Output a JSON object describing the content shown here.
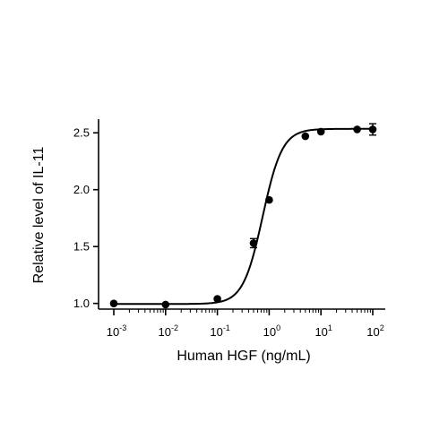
{
  "chart_data": {
    "type": "scatter",
    "xlabel": "Human HGF (ng/mL)",
    "ylabel": "Relative level of IL-11",
    "x_scale": "log10",
    "xlim": [
      0.001,
      100
    ],
    "ylim": [
      0.95,
      2.62
    ],
    "x_ticks": [
      {
        "value": 0.001,
        "base": "10",
        "exp": "-3"
      },
      {
        "value": 0.01,
        "base": "10",
        "exp": "-2"
      },
      {
        "value": 0.1,
        "base": "10",
        "exp": "-1"
      },
      {
        "value": 1,
        "base": "10",
        "exp": "0"
      },
      {
        "value": 10,
        "base": "10",
        "exp": "1"
      },
      {
        "value": 100,
        "base": "10",
        "exp": "2"
      }
    ],
    "y_ticks": [
      "1.0",
      "1.5",
      "2.0",
      "2.5"
    ],
    "grid": false,
    "series": [
      {
        "points": [
          {
            "x": 0.001,
            "y": 1.0,
            "err": 0.0
          },
          {
            "x": 0.01,
            "y": 0.99,
            "err": 0.0
          },
          {
            "x": 0.1,
            "y": 1.04,
            "err": 0.0
          },
          {
            "x": 0.5,
            "y": 1.53,
            "err": 0.04
          },
          {
            "x": 1,
            "y": 1.91,
            "err": 0.0
          },
          {
            "x": 5,
            "y": 2.47,
            "err": 0.0
          },
          {
            "x": 10,
            "y": 2.51,
            "err": 0.0
          },
          {
            "x": 50,
            "y": 2.53,
            "err": 0.0
          },
          {
            "x": 100,
            "y": 2.53,
            "err": 0.05
          }
        ],
        "fit": {
          "model": "4PL",
          "bottom": 0.995,
          "top": 2.535,
          "ec50": 0.75,
          "hill": 2.3
        },
        "color": "#000000"
      }
    ]
  }
}
